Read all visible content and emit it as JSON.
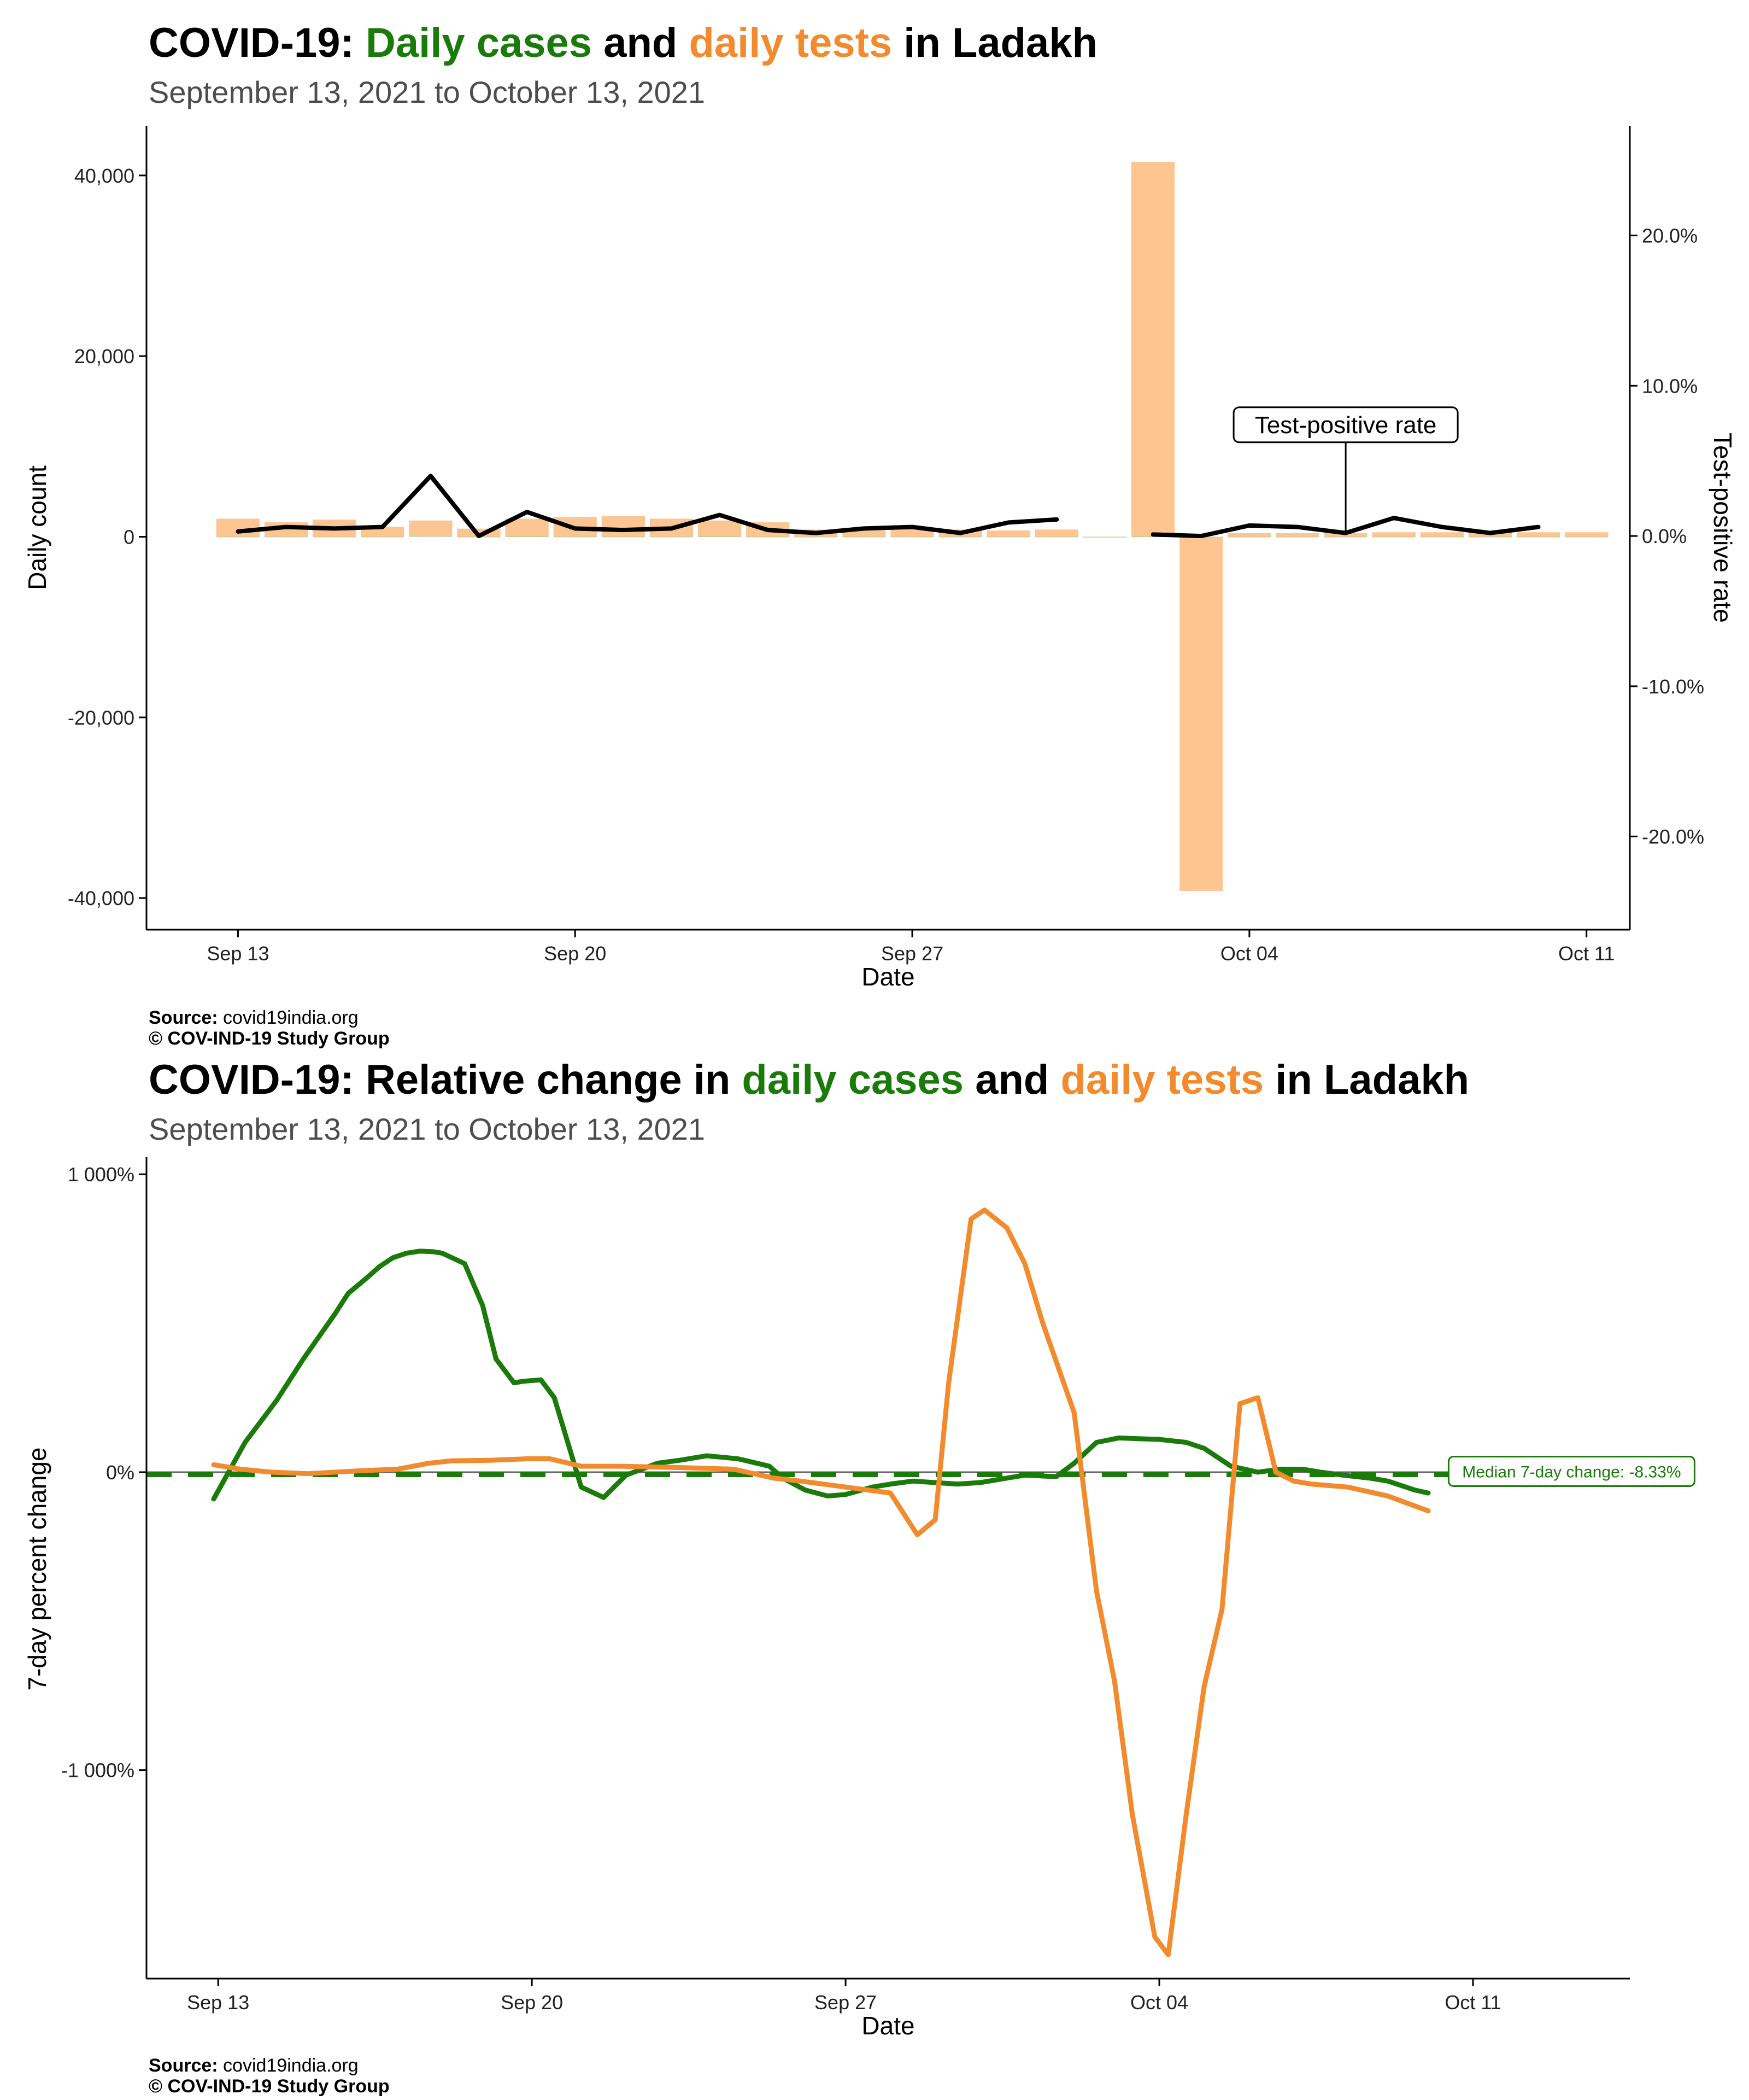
{
  "chart_data": [
    {
      "type": "bar",
      "title_parts": [
        {
          "text": "COVID-19: ",
          "color": "#000000"
        },
        {
          "text": "Daily cases",
          "color": "#1a7a0a"
        },
        {
          "text": " and ",
          "color": "#000000"
        },
        {
          "text": "daily tests",
          "color": "#f28a2e"
        },
        {
          "text": " in Ladakh",
          "color": "#000000"
        }
      ],
      "subtitle": "September 13, 2021 to October 13, 2021",
      "xlabel": "Date",
      "ylabel": "Daily count",
      "ylabel_right": "Test-positive rate",
      "x_ticks": [
        "Sep 13",
        "Sep 20",
        "Sep 27",
        "Oct 04",
        "Oct 11"
      ],
      "x_tick_days": [
        0,
        7,
        14,
        21,
        28
      ],
      "y_ticks": [
        "40,000",
        "20,000",
        "0",
        "-20,000",
        "-40,000"
      ],
      "y_tick_values": [
        40000,
        20000,
        0,
        -20000,
        -40000
      ],
      "y_right_ticks": [
        "20.0%",
        "10.0%",
        "0.0%",
        "-10.0%",
        "-20.0%"
      ],
      "y_right_tick_values": [
        20,
        10,
        0,
        -10,
        -20
      ],
      "xlim": [
        -1.9,
        28.9
      ],
      "ylim": [
        -43500,
        45500
      ],
      "y_right_lim": [
        -26.2,
        27.3
      ],
      "annotation": "Test-positive rate",
      "annotation_day": 23.0,
      "annotation_label_value": 7.4,
      "series": [
        {
          "name": "daily tests",
          "kind": "bar",
          "color": "#fdc592",
          "days": [
            0,
            1,
            2,
            3,
            4,
            5,
            6,
            7,
            8,
            9,
            10,
            11,
            12,
            13,
            14,
            15,
            16,
            17,
            18,
            19,
            20,
            21,
            22,
            23,
            24,
            25,
            26,
            27,
            28
          ],
          "values": [
            2000,
            1600,
            1900,
            1100,
            1800,
            900,
            2000,
            2200,
            2300,
            2000,
            1800,
            1600,
            800,
            700,
            900,
            800,
            700,
            800,
            0,
            41500,
            -39200,
            400,
            400,
            400,
            500,
            500,
            500,
            500,
            500
          ]
        },
        {
          "name": "daily cases",
          "kind": "bar",
          "color": "#a9cf9c",
          "days": [
            0,
            1,
            2,
            3,
            4,
            5,
            6,
            7,
            8,
            9,
            10,
            11,
            12,
            13,
            14,
            15,
            16,
            17,
            18,
            19,
            20,
            21,
            22,
            23,
            24,
            25,
            26,
            27,
            28
          ],
          "values": [
            5,
            10,
            8,
            6,
            70,
            3,
            30,
            12,
            8,
            6,
            30,
            5,
            3,
            4,
            5,
            3,
            3,
            6,
            -80,
            20,
            0,
            3,
            3,
            2,
            5,
            3,
            2,
            3,
            0
          ]
        },
        {
          "name": "Test-positive rate",
          "kind": "line",
          "color": "#000000",
          "segments": [
            {
              "days": [
                0,
                1,
                2,
                3,
                4,
                5,
                6,
                7,
                8,
                9,
                10,
                11,
                12,
                13,
                14,
                15,
                16,
                17
              ],
              "values": [
                0.3,
                0.6,
                0.5,
                0.6,
                4.0,
                0.0,
                1.6,
                0.5,
                0.4,
                0.5,
                1.4,
                0.4,
                0.2,
                0.5,
                0.6,
                0.2,
                0.9,
                1.1
              ]
            },
            {
              "days": [
                19,
                20,
                21,
                22,
                23,
                24,
                25,
                26,
                27
              ],
              "values": [
                0.1,
                0.0,
                0.7,
                0.6,
                0.2,
                1.2,
                0.6,
                0.2,
                0.6
              ]
            }
          ]
        }
      ],
      "source_label": "Source:",
      "source_value": "covid19india.org",
      "copyright": "© COV-IND-19 Study Group"
    },
    {
      "type": "line",
      "title_parts": [
        {
          "text": "COVID-19: Relative change in ",
          "color": "#000000"
        },
        {
          "text": "daily cases",
          "color": "#1a7a0a"
        },
        {
          "text": " and ",
          "color": "#000000"
        },
        {
          "text": "daily tests",
          "color": "#f28a2e"
        },
        {
          "text": " in Ladakh",
          "color": "#000000"
        }
      ],
      "subtitle": "September 13, 2021 to October 13, 2021",
      "xlabel": "Date",
      "ylabel": "7-day percent change",
      "x_ticks": [
        "Sep 13",
        "Sep 20",
        "Sep 27",
        "Oct 04",
        "Oct 11"
      ],
      "x_tick_days": [
        0,
        7,
        14,
        21,
        28
      ],
      "y_ticks": [
        "1 000%",
        "0%",
        "-1 000%"
      ],
      "y_tick_values": [
        1000,
        0,
        -1000
      ],
      "xlim": [
        -1.6,
        31.5
      ],
      "ylim": [
        -1700,
        1050
      ],
      "median_value": -8.33,
      "median_label": "Median 7-day change: -8.33%",
      "median_label_day": 30.2,
      "series": [
        {
          "name": "daily cases",
          "color": "#1a7a0a",
          "days": [
            -0.1,
            0.6,
            1.3,
            1.9,
            2.6,
            2.9,
            3.3,
            3.6,
            3.9,
            4.2,
            4.5,
            4.8,
            5.0,
            5.5,
            5.9,
            6.2,
            6.6,
            6.8,
            7.2,
            7.5,
            8.1,
            8.6,
            9.1,
            9.8,
            10.3,
            10.9,
            11.6,
            12.3,
            12.6,
            13.1,
            13.6,
            14.0,
            14.6,
            15.0,
            15.5,
            16.0,
            16.5,
            17.0,
            17.6,
            18.0,
            18.7,
            19.1,
            19.6,
            20.1,
            20.6,
            21.0,
            21.6,
            22.0,
            22.6,
            23.2,
            23.7,
            24.2,
            24.6,
            25.1,
            25.7,
            26.1,
            26.7,
            27.0
          ],
          "values": [
            -90,
            100,
            240,
            380,
            530,
            600,
            650,
            690,
            720,
            735,
            742,
            740,
            735,
            700,
            560,
            380,
            300,
            305,
            310,
            250,
            -50,
            -85,
            -10,
            30,
            40,
            55,
            45,
            20,
            -20,
            -60,
            -80,
            -75,
            -50,
            -40,
            -30,
            -35,
            -40,
            -35,
            -20,
            -10,
            -15,
            30,
            100,
            115,
            112,
            110,
            100,
            80,
            20,
            0,
            10,
            10,
            0,
            -10,
            -20,
            -30,
            -60,
            -70
          ]
        },
        {
          "name": "daily tests",
          "color": "#f28a2e",
          "days": [
            -0.1,
            0.5,
            1.2,
            2.0,
            3.2,
            4.0,
            4.7,
            5.2,
            6.1,
            6.9,
            7.4,
            8.1,
            9.0,
            10.4,
            11.5,
            12.4,
            13.0,
            14.0,
            14.5,
            15.0,
            15.6,
            16.0,
            16.3,
            16.8,
            17.1,
            17.6,
            18.0,
            18.4,
            19.1,
            19.6,
            20.0,
            20.4,
            20.9,
            21.2,
            21.6,
            22.0,
            22.4,
            22.8,
            23.2,
            23.6,
            24.0,
            24.4,
            25.2,
            26.1,
            27.0
          ],
          "values": [
            25,
            10,
            0,
            -5,
            5,
            10,
            30,
            38,
            40,
            45,
            45,
            20,
            20,
            15,
            10,
            -20,
            -30,
            -50,
            -60,
            -70,
            -210,
            -160,
            300,
            850,
            880,
            820,
            700,
            500,
            200,
            -400,
            -700,
            -1150,
            -1560,
            -1620,
            -1150,
            -720,
            -460,
            230,
            250,
            0,
            -30,
            -40,
            -50,
            -80,
            -130
          ]
        }
      ],
      "source_label": "Source:",
      "source_value": "covid19india.org",
      "copyright": "© COV-IND-19 Study Group"
    }
  ]
}
